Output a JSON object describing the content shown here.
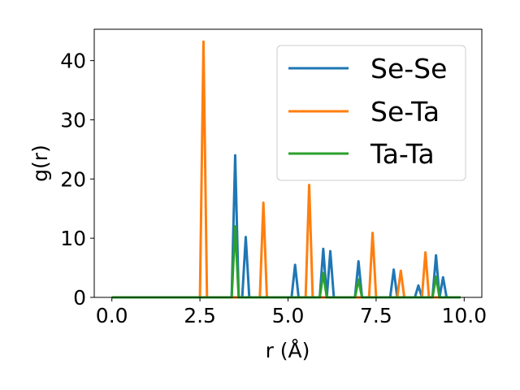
{
  "chart_data": {
    "type": "line",
    "xlabel": "r (Å)",
    "ylabel": "g(r)",
    "xlim": [
      -0.5,
      10.5
    ],
    "ylim": [
      0,
      45.3
    ],
    "xticks": [
      0.0,
      2.5,
      5.0,
      7.5,
      10.0
    ],
    "xtick_labels": [
      "0.0",
      "2.5",
      "5.0",
      "7.5",
      "10.0"
    ],
    "yticks": [
      0,
      10,
      20,
      30,
      40
    ],
    "ytick_labels": [
      "0",
      "10",
      "20",
      "30",
      "40"
    ],
    "grid": false,
    "legend_position": "top-right",
    "series": [
      {
        "name": "Se-Se",
        "color": "#1f77b4",
        "x": [
          0.0,
          3.4,
          3.5,
          3.6,
          3.7,
          3.8,
          3.9,
          5.1,
          5.2,
          5.3,
          5.9,
          6.0,
          6.1,
          6.2,
          6.3,
          6.9,
          7.0,
          7.1,
          7.9,
          8.0,
          8.1,
          8.6,
          8.7,
          8.8,
          9.1,
          9.2,
          9.3,
          9.4,
          9.5,
          9.9
        ],
        "y": [
          0,
          0,
          24,
          0,
          0,
          10.2,
          0,
          0,
          5.5,
          0,
          0,
          8.2,
          0,
          7.8,
          0,
          0,
          6.1,
          0,
          0,
          4.7,
          0,
          0,
          2.0,
          0,
          0,
          7.1,
          0,
          3.4,
          0,
          0
        ]
      },
      {
        "name": "Se-Ta",
        "color": "#ff7f0e",
        "x": [
          0.0,
          2.5,
          2.6,
          2.7,
          4.2,
          4.3,
          4.4,
          5.5,
          5.6,
          5.7,
          7.3,
          7.4,
          7.5,
          8.1,
          8.2,
          8.3,
          8.8,
          8.9,
          9.0,
          9.9
        ],
        "y": [
          0,
          0,
          43.2,
          0,
          0,
          16.0,
          0,
          0,
          19.0,
          0,
          0,
          10.9,
          0,
          0,
          4.5,
          0,
          0,
          7.6,
          0,
          0
        ]
      },
      {
        "name": "Ta-Ta",
        "color": "#2ca02c",
        "x": [
          0.0,
          3.4,
          3.5,
          3.6,
          5.9,
          6.0,
          6.1,
          6.9,
          7.0,
          7.1,
          9.1,
          9.2,
          9.3,
          9.9
        ],
        "y": [
          0,
          0,
          12.0,
          0,
          0,
          4.1,
          0,
          0,
          3.0,
          0,
          0,
          3.5,
          0,
          0
        ]
      }
    ]
  }
}
